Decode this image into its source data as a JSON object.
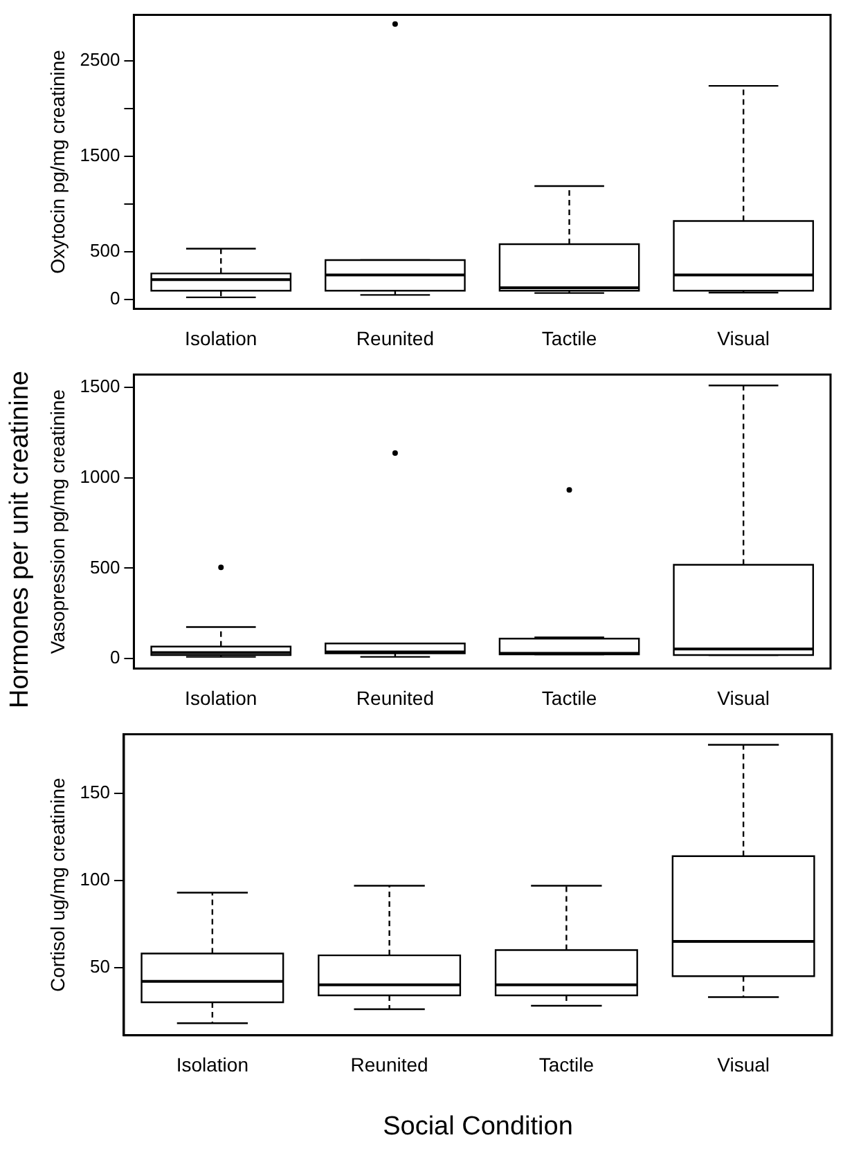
{
  "chart_data": [
    {
      "type": "box",
      "ylabel": "Oxytocin pg/mg creatinine",
      "categories": [
        "Isolation",
        "Reunited",
        "Tactile",
        "Visual"
      ],
      "ylim": [
        -100,
        2980
      ],
      "yticks": [
        0,
        500,
        {
          "value": 1000,
          "label": null
        },
        1500,
        {
          "value": 2000,
          "label": null
        },
        2500
      ],
      "grid": false,
      "boxes": [
        {
          "low": 20,
          "q1": 90,
          "median": 205,
          "q3": 270,
          "high": 530
        },
        {
          "low": 45,
          "q1": 90,
          "median": 255,
          "q3": 410,
          "high": 410,
          "outliers": [
            2885
          ]
        },
        {
          "low": 65,
          "q1": 90,
          "median": 120,
          "q3": 577,
          "high": 1186
        },
        {
          "low": 70,
          "q1": 90,
          "median": 255,
          "q3": 820,
          "high": 2237
        }
      ]
    },
    {
      "type": "box",
      "ylabel": "Vasopression pg/mg creatinine",
      "annotations": [
        "Hormones per unit creatinine"
      ],
      "categories": [
        "Isolation",
        "Reunited",
        "Tactile",
        "Visual"
      ],
      "ylim": [
        -54,
        1570
      ],
      "yticks": [
        0,
        500,
        1000,
        1500
      ],
      "grid": false,
      "boxes": [
        {
          "low": 10,
          "q1": 20,
          "median": 34,
          "q3": 67,
          "high": 175,
          "outliers": [
            505
          ]
        },
        {
          "low": 10,
          "q1": 30,
          "median": 37,
          "q3": 84,
          "high": 84,
          "outliers": [
            1136
          ]
        },
        {
          "low": 24,
          "q1": 24,
          "median": 30,
          "q3": 111,
          "high": 118,
          "outliers": [
            933
          ]
        },
        {
          "low": 20,
          "q1": 20,
          "median": 54,
          "q3": 519,
          "high": 1510
        }
      ]
    },
    {
      "type": "box",
      "ylabel": "Cortisol ug/mg creatinine",
      "xlabel": "Social Condition",
      "categories": [
        "Isolation",
        "Reunited",
        "Tactile",
        "Visual"
      ],
      "ylim": [
        11,
        184
      ],
      "yticks": [
        50,
        100,
        150
      ],
      "grid": false,
      "boxes": [
        {
          "low": 18,
          "q1": 30,
          "median": 42,
          "q3": 58,
          "high": 93
        },
        {
          "low": 26,
          "q1": 34,
          "median": 40,
          "q3": 57,
          "high": 97
        },
        {
          "low": 28,
          "q1": 34,
          "median": 40,
          "q3": 60,
          "high": 97
        },
        {
          "low": 33,
          "q1": 45,
          "median": 65,
          "q3": 114,
          "high": 178
        }
      ]
    }
  ]
}
